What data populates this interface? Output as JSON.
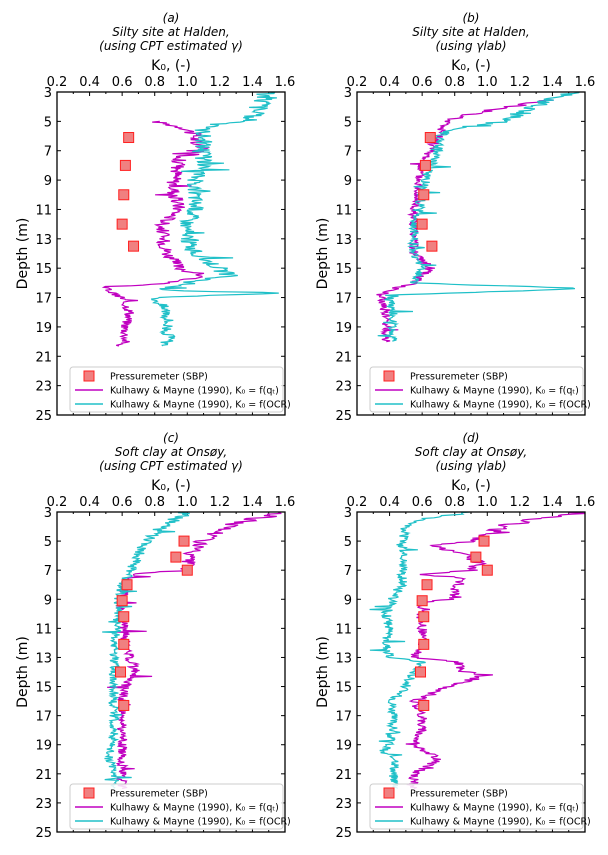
{
  "chart_data": [
    {
      "type": "line",
      "panel": "(a)",
      "title_lines": [
        "(a)",
        "Silty site at Halden,",
        "(using CPT estimated γ)"
      ],
      "xlabel": "K₀, (-)",
      "ylabel": "Depth (m)",
      "xlim": [
        0.2,
        1.6
      ],
      "ylim": [
        25,
        3
      ],
      "xticks": [
        "0.2",
        "0.4",
        "0.6",
        "0.8",
        "1.0",
        "1.2",
        "1.4",
        "1.6"
      ],
      "yticks": [
        "3",
        "5",
        "7",
        "9",
        "11",
        "13",
        "15",
        "17",
        "19",
        "21",
        "23",
        "25"
      ],
      "legend_position": "bottom",
      "series": [
        {
          "name": "Pressuremeter (SBP)",
          "kind": "marker",
          "color": "#f08080",
          "points": [
            [
              0.64,
              6.1
            ],
            [
              0.62,
              8.0
            ],
            [
              0.61,
              10.0
            ],
            [
              0.6,
              12.0
            ],
            [
              0.67,
              13.5
            ]
          ]
        },
        {
          "name": "Kulhawy & Mayne (1990), K₀ = f(qₜ)",
          "kind": "line",
          "color": "#c000c0",
          "points": [
            [
              0.8,
              5.0
            ],
            [
              1.0,
              5.5
            ],
            [
              1.05,
              6.0
            ],
            [
              1.05,
              6.5
            ],
            [
              1.1,
              7.0
            ],
            [
              0.95,
              7.5
            ],
            [
              0.95,
              8.0
            ],
            [
              0.92,
              9.0
            ],
            [
              0.92,
              10.0
            ],
            [
              0.95,
              11.0
            ],
            [
              0.85,
              12.0
            ],
            [
              0.85,
              13.0
            ],
            [
              0.88,
              14.0
            ],
            [
              0.95,
              15.0
            ],
            [
              1.1,
              15.5
            ],
            [
              0.9,
              16.0
            ],
            [
              0.5,
              16.3
            ],
            [
              0.55,
              16.8
            ],
            [
              0.6,
              17.0
            ],
            [
              0.65,
              18.0
            ],
            [
              0.62,
              19.0
            ],
            [
              0.62,
              20.0
            ],
            [
              0.58,
              20.3
            ]
          ]
        },
        {
          "name": "Kulhawy & Mayne (1990), K₀ = f(OCR)",
          "kind": "line",
          "color": "#20c0c8",
          "points": [
            [
              1.5,
              3.0
            ],
            [
              1.45,
              4.0
            ],
            [
              1.35,
              5.0
            ],
            [
              1.1,
              5.5
            ],
            [
              1.1,
              6.0
            ],
            [
              1.1,
              6.5
            ],
            [
              1.1,
              7.0
            ],
            [
              1.1,
              8.0
            ],
            [
              1.05,
              9.0
            ],
            [
              1.05,
              10.0
            ],
            [
              1.05,
              11.0
            ],
            [
              1.0,
              12.0
            ],
            [
              1.0,
              13.0
            ],
            [
              1.05,
              14.0
            ],
            [
              1.2,
              15.0
            ],
            [
              1.25,
              15.5
            ],
            [
              1.0,
              16.0
            ],
            [
              0.8,
              16.5
            ],
            [
              1.6,
              16.7
            ],
            [
              0.8,
              17.0
            ],
            [
              0.88,
              18.0
            ],
            [
              0.88,
              19.0
            ],
            [
              0.88,
              20.0
            ],
            [
              0.85,
              20.3
            ]
          ]
        }
      ]
    },
    {
      "type": "line",
      "panel": "(b)",
      "title_lines": [
        "(b)",
        "Silty site at Halden,",
        "(using γlab)"
      ],
      "xlabel": "K₀, (-)",
      "ylabel": "Depth (m)",
      "xlim": [
        0.2,
        1.6
      ],
      "ylim": [
        25,
        3
      ],
      "xticks": [
        "0.2",
        "0.4",
        "0.6",
        "0.8",
        "1.0",
        "1.2",
        "1.4",
        "1.6"
      ],
      "yticks": [
        "3",
        "5",
        "7",
        "9",
        "11",
        "13",
        "15",
        "17",
        "19",
        "21",
        "23",
        "25"
      ],
      "legend_position": "bottom",
      "series": [
        {
          "name": "Pressuremeter (SBP)",
          "kind": "marker",
          "color": "#f08080",
          "points": [
            [
              0.65,
              6.1
            ],
            [
              0.62,
              8.0
            ],
            [
              0.61,
              10.0
            ],
            [
              0.6,
              12.0
            ],
            [
              0.66,
              13.5
            ]
          ]
        },
        {
          "name": "Kulhawy & Mayne (1990), K₀ = f(qₜ)",
          "kind": "line",
          "color": "#c000c0",
          "points": [
            [
              1.4,
              3.5
            ],
            [
              0.9,
              4.5
            ],
            [
              0.75,
              5.0
            ],
            [
              0.7,
              6.0
            ],
            [
              0.65,
              7.0
            ],
            [
              0.6,
              8.0
            ],
            [
              0.58,
              9.0
            ],
            [
              0.58,
              10.0
            ],
            [
              0.55,
              11.0
            ],
            [
              0.55,
              12.0
            ],
            [
              0.55,
              13.0
            ],
            [
              0.55,
              14.0
            ],
            [
              0.65,
              15.0
            ],
            [
              0.6,
              15.5
            ],
            [
              0.55,
              16.0
            ],
            [
              0.4,
              16.5
            ],
            [
              0.35,
              17.0
            ],
            [
              0.38,
              18.0
            ],
            [
              0.38,
              19.0
            ],
            [
              0.38,
              20.0
            ]
          ]
        },
        {
          "name": "Kulhawy & Mayne (1990), K₀ = f(OCR)",
          "kind": "line",
          "color": "#20c0c8",
          "points": [
            [
              1.5,
              3.0
            ],
            [
              1.3,
              4.0
            ],
            [
              1.1,
              5.0
            ],
            [
              0.8,
              5.5
            ],
            [
              0.7,
              6.0
            ],
            [
              0.7,
              7.0
            ],
            [
              0.65,
              8.0
            ],
            [
              0.62,
              9.0
            ],
            [
              0.6,
              10.0
            ],
            [
              0.58,
              11.0
            ],
            [
              0.55,
              12.0
            ],
            [
              0.55,
              13.0
            ],
            [
              0.55,
              14.0
            ],
            [
              0.6,
              15.0
            ],
            [
              0.55,
              16.0
            ],
            [
              1.6,
              16.4
            ],
            [
              0.5,
              16.8
            ],
            [
              0.4,
              17.0
            ],
            [
              0.42,
              18.0
            ],
            [
              0.42,
              19.0
            ],
            [
              0.42,
              20.0
            ]
          ]
        }
      ]
    },
    {
      "type": "line",
      "panel": "(c)",
      "title_lines": [
        "(c)",
        "Soft clay at Onsøy,",
        "(using CPT estimated γ)"
      ],
      "xlabel": "K₀, (-)",
      "ylabel": "Depth (m)",
      "xlim": [
        0.2,
        1.6
      ],
      "ylim": [
        25,
        3
      ],
      "xticks": [
        "0.2",
        "0.4",
        "0.6",
        "0.8",
        "1.0",
        "1.2",
        "1.4",
        "1.6"
      ],
      "yticks": [
        "3",
        "5",
        "7",
        "9",
        "11",
        "13",
        "15",
        "17",
        "19",
        "21",
        "23",
        "25"
      ],
      "legend_position": "bottom",
      "series": [
        {
          "name": "Pressuremeter (SBP)",
          "kind": "marker",
          "color": "#f08080",
          "points": [
            [
              0.98,
              5.0
            ],
            [
              0.93,
              6.1
            ],
            [
              1.0,
              7.0
            ],
            [
              0.63,
              8.0
            ],
            [
              0.6,
              9.1
            ],
            [
              0.61,
              10.2
            ],
            [
              0.61,
              12.1
            ],
            [
              0.59,
              14.0
            ],
            [
              0.61,
              16.3
            ]
          ]
        },
        {
          "name": "Kulhawy & Mayne (1990), K₀ = f(qₜ)",
          "kind": "line",
          "color": "#c000c0",
          "points": [
            [
              1.6,
              3.0
            ],
            [
              1.4,
              3.5
            ],
            [
              1.25,
              4.0
            ],
            [
              1.1,
              5.0
            ],
            [
              1.0,
              6.0
            ],
            [
              1.0,
              7.0
            ],
            [
              0.65,
              7.3
            ],
            [
              0.62,
              8.0
            ],
            [
              0.6,
              9.0
            ],
            [
              0.6,
              10.0
            ],
            [
              0.62,
              12.0
            ],
            [
              0.65,
              13.0
            ],
            [
              0.68,
              14.0
            ],
            [
              0.62,
              15.0
            ],
            [
              0.6,
              16.0
            ],
            [
              0.6,
              17.0
            ],
            [
              0.6,
              18.0
            ],
            [
              0.6,
              19.0
            ],
            [
              0.6,
              20.0
            ],
            [
              0.6,
              21.0
            ],
            [
              0.6,
              22.0
            ]
          ]
        },
        {
          "name": "Kulhawy & Mayne (1990), K₀ = f(OCR)",
          "kind": "line",
          "color": "#20c0c8",
          "points": [
            [
              1.0,
              3.0
            ],
            [
              0.85,
              4.0
            ],
            [
              0.75,
              5.0
            ],
            [
              0.7,
              6.0
            ],
            [
              0.65,
              7.0
            ],
            [
              0.6,
              8.0
            ],
            [
              0.58,
              9.0
            ],
            [
              0.58,
              10.0
            ],
            [
              0.55,
              12.0
            ],
            [
              0.55,
              14.0
            ],
            [
              0.55,
              16.0
            ],
            [
              0.55,
              18.0
            ],
            [
              0.52,
              20.0
            ],
            [
              0.55,
              21.0
            ],
            [
              0.55,
              22.0
            ]
          ]
        }
      ]
    },
    {
      "type": "line",
      "panel": "(d)",
      "title_lines": [
        "(d)",
        "Soft clay at Onsøy,",
        "(using γlab)"
      ],
      "xlabel": "K₀, (-)",
      "ylabel": "Depth (m)",
      "xlim": [
        0.2,
        1.6
      ],
      "ylim": [
        25,
        3
      ],
      "xticks": [
        "0.2",
        "0.4",
        "0.6",
        "0.8",
        "1.0",
        "1.2",
        "1.4",
        "1.6"
      ],
      "yticks": [
        "3",
        "5",
        "7",
        "9",
        "11",
        "13",
        "15",
        "17",
        "19",
        "21",
        "23",
        "25"
      ],
      "legend_position": "bottom",
      "series": [
        {
          "name": "Pressuremeter (SBP)",
          "kind": "marker",
          "color": "#f08080",
          "points": [
            [
              0.98,
              5.0
            ],
            [
              0.93,
              6.1
            ],
            [
              1.0,
              7.0
            ],
            [
              0.63,
              8.0
            ],
            [
              0.6,
              9.1
            ],
            [
              0.61,
              10.2
            ],
            [
              0.61,
              12.1
            ],
            [
              0.59,
              14.0
            ],
            [
              0.61,
              16.3
            ]
          ]
        },
        {
          "name": "Kulhawy & Mayne (1990), K₀ = f(qₜ)",
          "kind": "line",
          "color": "#c000c0",
          "points": [
            [
              1.6,
              3.0
            ],
            [
              1.3,
              3.5
            ],
            [
              1.1,
              4.0
            ],
            [
              0.92,
              5.0
            ],
            [
              0.65,
              5.3
            ],
            [
              0.9,
              6.0
            ],
            [
              0.95,
              6.5
            ],
            [
              0.9,
              7.0
            ],
            [
              0.6,
              7.3
            ],
            [
              0.82,
              7.5
            ],
            [
              0.82,
              8.0
            ],
            [
              0.8,
              9.0
            ],
            [
              0.6,
              9.2
            ],
            [
              0.58,
              10.0
            ],
            [
              0.6,
              11.0
            ],
            [
              0.6,
              12.0
            ],
            [
              0.55,
              13.0
            ],
            [
              0.82,
              13.3
            ],
            [
              0.85,
              14.0
            ],
            [
              1.0,
              14.2
            ],
            [
              0.75,
              15.0
            ],
            [
              0.62,
              15.7
            ],
            [
              0.55,
              16.0
            ],
            [
              0.6,
              17.0
            ],
            [
              0.6,
              18.0
            ],
            [
              0.55,
              19.0
            ],
            [
              0.7,
              20.0
            ],
            [
              0.55,
              21.0
            ],
            [
              0.55,
              22.0
            ]
          ]
        },
        {
          "name": "Kulhawy & Mayne (1990), K₀ = f(OCR)",
          "kind": "line",
          "color": "#20c0c8",
          "points": [
            [
              0.9,
              3.0
            ],
            [
              0.6,
              3.5
            ],
            [
              0.5,
              4.0
            ],
            [
              0.48,
              5.0
            ],
            [
              0.48,
              6.0
            ],
            [
              0.48,
              7.0
            ],
            [
              0.48,
              8.0
            ],
            [
              0.42,
              9.0
            ],
            [
              0.38,
              10.0
            ],
            [
              0.4,
              11.0
            ],
            [
              0.38,
              12.0
            ],
            [
              0.4,
              13.0
            ],
            [
              0.6,
              13.3
            ],
            [
              0.55,
              14.0
            ],
            [
              0.5,
              15.0
            ],
            [
              0.42,
              16.0
            ],
            [
              0.42,
              17.0
            ],
            [
              0.42,
              18.0
            ],
            [
              0.4,
              19.0
            ],
            [
              0.35,
              19.5
            ],
            [
              0.45,
              20.0
            ],
            [
              0.42,
              21.0
            ],
            [
              0.45,
              22.0
            ]
          ]
        }
      ]
    }
  ]
}
